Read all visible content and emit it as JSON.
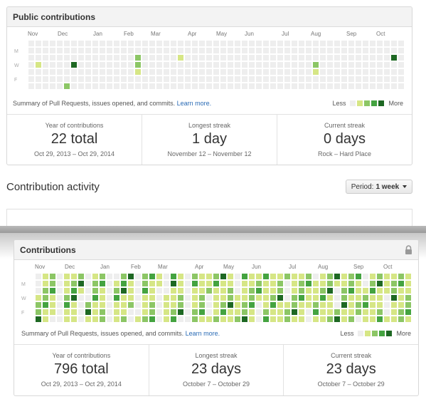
{
  "top_panel": {
    "title": "Public contributions",
    "months": [
      "Nov",
      "Dec",
      "Jan",
      "Feb",
      "Mar",
      "Apr",
      "May",
      "Jun",
      "Jul",
      "Aug",
      "Sep",
      "Oct"
    ],
    "day_labels": [
      "M",
      "W",
      "F"
    ],
    "summary_text": "Summary of Pull Requests, issues opened, and commits.",
    "learn_more": "Learn more.",
    "legend_less": "Less",
    "legend_more": "More",
    "stats": [
      {
        "title": "Year of contributions",
        "value": "22 total",
        "sub": "Oct 29, 2013 – Oct 29, 2014"
      },
      {
        "title": "Longest streak",
        "value": "1 day",
        "sub": "November 12 – November 12"
      },
      {
        "title": "Current streak",
        "value": "0 days",
        "sub": "Rock – Hard Place"
      }
    ]
  },
  "activity": {
    "title": "Contribution activity",
    "period_label": "Period:",
    "period_value": "1 week"
  },
  "bottom_panel": {
    "title": "Contributions",
    "months": [
      "Nov",
      "Dec",
      "Jan",
      "Feb",
      "Mar",
      "Apr",
      "May",
      "Jun",
      "Jul",
      "Aug",
      "Sep",
      "Oct"
    ],
    "day_labels": [
      "M",
      "W",
      "F"
    ],
    "summary_text": "Summary of Pull Requests, issues opened, and commits.",
    "learn_more": "Learn more.",
    "legend_less": "Less",
    "legend_more": "More",
    "stats": [
      {
        "title": "Year of contributions",
        "value": "796 total",
        "sub": "Oct 29, 2013 – Oct 29, 2014"
      },
      {
        "title": "Longest streak",
        "value": "23 days",
        "sub": "October 7 – October 29"
      },
      {
        "title": "Current streak",
        "value": "23 days",
        "sub": "October 7 – October 29"
      }
    ]
  },
  "colors": {
    "level0": "#eeeeee",
    "level1": "#d6e685",
    "level2": "#8cc665",
    "level3": "#44a340",
    "level4": "#1e6823",
    "link": "#2a6bb5"
  }
}
